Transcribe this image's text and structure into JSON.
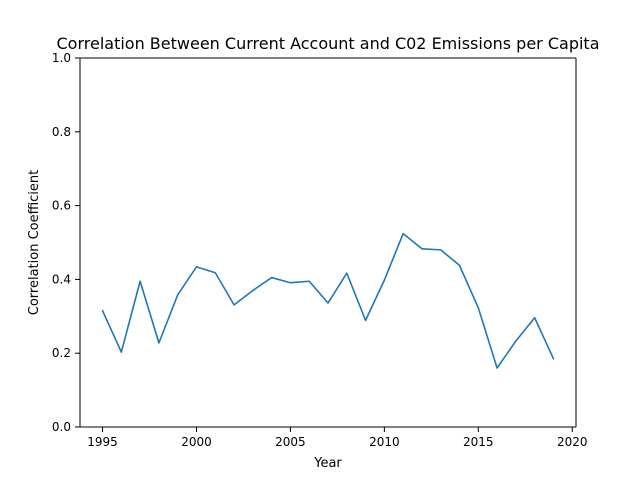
{
  "chart_data": {
    "type": "line",
    "title": "Correlation Between Current Account and C02 Emissions per Capita",
    "xlabel": "Year",
    "ylabel": "Correlation Coefficient",
    "xlim": [
      1993.8,
      2020.2
    ],
    "ylim": [
      0.0,
      1.0
    ],
    "x_ticks": [
      "1995",
      "2000",
      "2005",
      "2010",
      "2015",
      "2020"
    ],
    "y_ticks": [
      "0.0",
      "0.2",
      "0.4",
      "0.6",
      "0.8",
      "1.0"
    ],
    "grid": false,
    "legend": "none",
    "series": [
      {
        "color": "#1f77b4",
        "x": [
          1995,
          1996,
          1997,
          1998,
          1999,
          2000,
          2001,
          2002,
          2003,
          2004,
          2005,
          2006,
          2007,
          2008,
          2009,
          2010,
          2011,
          2012,
          2013,
          2014,
          2015,
          2016,
          2017,
          2018,
          2019
        ],
        "values": [
          0.315,
          0.203,
          0.395,
          0.228,
          0.358,
          0.434,
          0.418,
          0.331,
          0.37,
          0.405,
          0.391,
          0.395,
          0.336,
          0.417,
          0.289,
          0.398,
          0.524,
          0.483,
          0.48,
          0.438,
          0.323,
          0.16,
          0.233,
          0.296,
          0.185
        ]
      }
    ]
  }
}
